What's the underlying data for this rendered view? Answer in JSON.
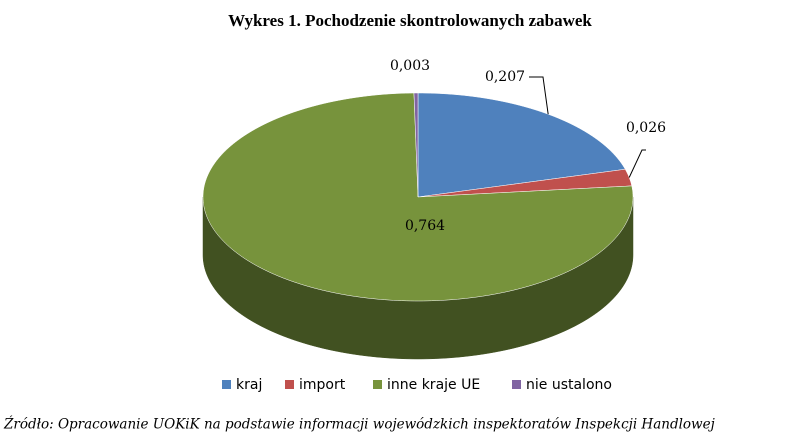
{
  "chart_data": {
    "type": "pie3d",
    "title": "Wykres 1. Pochodzenie skontrolowanych zabawek",
    "categories": [
      "kraj",
      "import",
      "inne kraje UE",
      "nie ustalono"
    ],
    "values": [
      0.207,
      0.026,
      0.764,
      0.003
    ],
    "value_labels": [
      "0,207",
      "0,026",
      "0,764",
      "0,003"
    ],
    "colors": [
      "#4f81bd",
      "#c0504d",
      "#77933c",
      "#8064a2"
    ],
    "legend": "bottom",
    "source": "Źródło: Opracowanie UOKiK na podstawie informacji wojewódzkich inspektoratów Inspekcji Handlowej"
  }
}
